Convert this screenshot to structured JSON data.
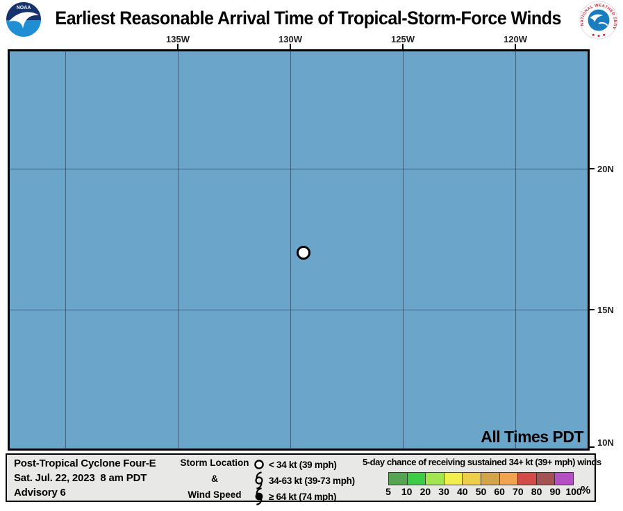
{
  "header": {
    "title": "Earliest Reasonable Arrival Time of Tropical-Storm-Force Winds",
    "noaa_logo_text": "NOAA",
    "nws_logo_text": "NATIONAL WEATHER SERVICE"
  },
  "map": {
    "ocean_color": "#6ba5ca",
    "lon_labels": [
      "135W",
      "130W",
      "125W",
      "120W"
    ],
    "lat_labels": [
      "20N",
      "15N",
      "10N"
    ],
    "watermark": "All Times PDT",
    "storm_marker": "white-open-circle"
  },
  "storm_info": {
    "line1": "Post-Tropical Cyclone Four-E",
    "line2": "Sat. Jul. 22, 2023  8 am PDT",
    "line3": "Advisory 6"
  },
  "symbol_legend": {
    "col_labels": [
      "Storm Location",
      "&",
      "Wind Speed"
    ],
    "items": [
      {
        "icon": "open-circle",
        "label": "< 34 kt (39 mph)"
      },
      {
        "icon": "tropical-storm-symbol",
        "label": "34-63 kt (39-73 mph)"
      },
      {
        "icon": "hurricane-symbol",
        "label": "≥ 64 kt (74 mph)"
      }
    ]
  },
  "probability_legend": {
    "title": "5-day chance of receiving sustained 34+ kt (39+ mph) winds",
    "tick_labels": [
      "5",
      "10",
      "20",
      "30",
      "40",
      "50",
      "60",
      "70",
      "80",
      "90",
      "100"
    ],
    "unit": "%",
    "colors": [
      "#56a353",
      "#3fcc44",
      "#a3e551",
      "#f2ee4e",
      "#eecf4b",
      "#d2a54b",
      "#f2a34f",
      "#d34b48",
      "#a35452",
      "#b44fc4"
    ]
  }
}
